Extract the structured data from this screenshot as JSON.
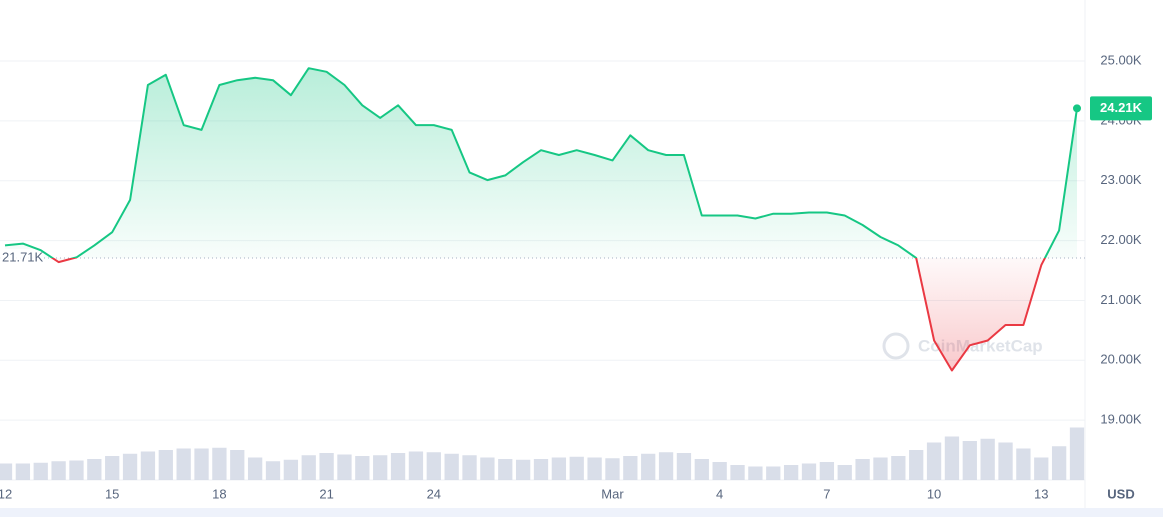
{
  "chart_data": {
    "type": "line",
    "categories": [
      "12",
      null,
      null,
      null,
      null,
      null,
      "15",
      null,
      null,
      null,
      null,
      null,
      "18",
      null,
      null,
      null,
      null,
      null,
      "21",
      null,
      null,
      null,
      null,
      null,
      "24",
      null,
      null,
      null,
      null,
      null,
      null,
      null,
      null,
      null,
      "Mar",
      null,
      null,
      null,
      null,
      null,
      "4",
      null,
      null,
      null,
      null,
      null,
      "7",
      null,
      null,
      null,
      null,
      null,
      "10",
      null,
      null,
      null,
      null,
      null,
      "13",
      null,
      null
    ],
    "values": [
      21920,
      21950,
      21840,
      21640,
      21720,
      21920,
      22140,
      22680,
      24600,
      24770,
      23930,
      23850,
      24600,
      24680,
      24720,
      24680,
      24430,
      24880,
      24820,
      24600,
      24260,
      24050,
      24260,
      23930,
      23930,
      23850,
      23140,
      23010,
      23090,
      23310,
      23510,
      23430,
      23510,
      23430,
      23340,
      23760,
      23510,
      23430,
      23430,
      22420,
      22420,
      22420,
      22370,
      22450,
      22450,
      22470,
      22470,
      22420,
      22260,
      22060,
      21920,
      21710,
      20330,
      19830,
      20250,
      20330,
      20590,
      20590,
      21590,
      22170,
      24210
    ],
    "value_labels": [
      null,
      null,
      null,
      null,
      null,
      null,
      null,
      null,
      null,
      null,
      null,
      null,
      null,
      null,
      null,
      null,
      null,
      null,
      null,
      null,
      null,
      null,
      null,
      null,
      null,
      null,
      null,
      null,
      null,
      null,
      null,
      null,
      null,
      null,
      null,
      null,
      null,
      null,
      null,
      null,
      null,
      null,
      null,
      null,
      null,
      null,
      null,
      null,
      null,
      null,
      null,
      null,
      null,
      null,
      null,
      null,
      null,
      null,
      null,
      null,
      "24.21K"
    ],
    "volume": [
      22,
      22,
      23,
      25,
      26,
      28,
      32,
      35,
      38,
      40,
      42,
      42,
      43,
      40,
      30,
      25,
      27,
      33,
      36,
      34,
      32,
      33,
      36,
      38,
      37,
      35,
      33,
      30,
      28,
      27,
      28,
      30,
      31,
      30,
      29,
      32,
      35,
      37,
      36,
      28,
      24,
      20,
      18,
      18,
      20,
      22,
      24,
      20,
      28,
      30,
      32,
      40,
      50,
      58,
      52,
      55,
      50,
      42,
      30,
      45,
      70
    ],
    "baseline": {
      "value": 21710,
      "label": "21.71K"
    },
    "up_color": "#16c784",
    "down_color": "#ea3943",
    "volume_color": "#cfd6e4",
    "ylim": [
      18000,
      26020
    ],
    "yticks": [
      {
        "value": 19000,
        "label": "19.00K"
      },
      {
        "value": 20000,
        "label": "20.00K"
      },
      {
        "value": 21000,
        "label": "21.00K"
      },
      {
        "value": 22000,
        "label": "22.00K"
      },
      {
        "value": 23000,
        "label": "23.00K"
      },
      {
        "value": 24000,
        "label": "24.00K"
      },
      {
        "value": 25000,
        "label": "25.00K"
      }
    ],
    "grid": true,
    "unit_label": "USD",
    "watermark": "CoinMarketCap"
  }
}
